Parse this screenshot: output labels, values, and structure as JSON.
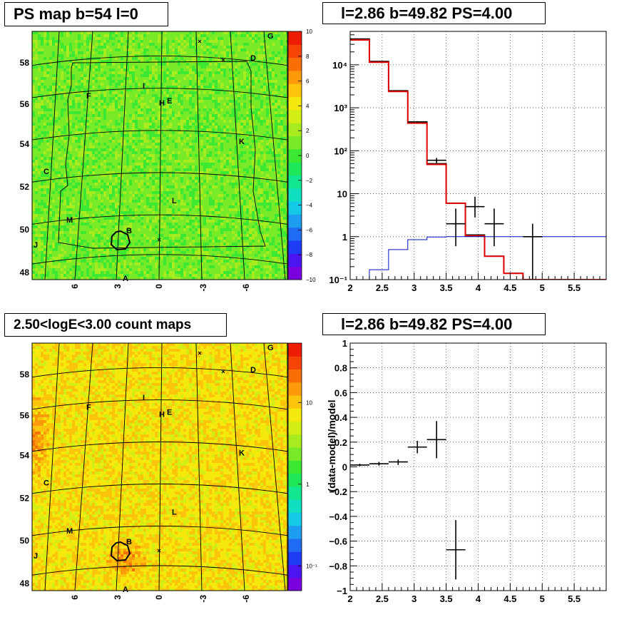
{
  "titles": {
    "ps_map": "PS map b=54 l=0",
    "count_maps": "2.50<logE<3.00 count maps",
    "spectrum": "l=2.86 b=49.82 PS=4.00",
    "residual": "l=2.86 b=49.82 PS=4.00"
  },
  "sky_maps": {
    "lat_labels": [
      "48",
      "50",
      "52",
      "54",
      "56",
      "58"
    ],
    "lon_labels": [
      "6",
      "3",
      "0",
      "-3",
      "-6"
    ],
    "source_labels": [
      "G",
      "D",
      "F",
      "I",
      "H",
      "E",
      "K",
      "C",
      "L",
      "M",
      "B",
      "J",
      "A"
    ]
  },
  "chart_data": [
    {
      "type": "heatmap",
      "id": "ps_map",
      "title": "PS map b=54 l=0",
      "colorbar": {
        "min": -10,
        "max": 10,
        "scale": "linear",
        "tick_labels": [
          "10",
          "8",
          "6",
          "4",
          "2",
          "0",
          "−2",
          "−4",
          "−6",
          "−8",
          "−10"
        ]
      },
      "xlabel": "",
      "ylabel": ""
    },
    {
      "type": "heatmap",
      "id": "count_maps",
      "title": "2.50<logE<3.00 count maps",
      "colorbar": {
        "scale": "log",
        "tick_labels": [
          "10",
          "1",
          "10⁻¹"
        ]
      },
      "xlabel": "",
      "ylabel": ""
    },
    {
      "type": "step",
      "id": "spectrum",
      "title": "l=2.86 b=49.82 PS=4.00",
      "xlim": [
        2,
        6
      ],
      "ylim": [
        0.1,
        60000
      ],
      "yscale": "log",
      "x_ticks": [
        "2",
        "2.5",
        "3",
        "3.5",
        "4",
        "4.5",
        "5",
        "5.5"
      ],
      "y_ticks": [
        "10⁻¹",
        "1",
        "10",
        "10²",
        "10³",
        "10⁴"
      ],
      "bin_edges": [
        2,
        2.3,
        2.6,
        2.9,
        3.2,
        3.5,
        3.8,
        4.1,
        4.4,
        4.7,
        5.0,
        6.0
      ],
      "series": [
        {
          "style": "black-hist",
          "values": [
            40000,
            12000,
            2500,
            470,
            50,
            6,
            1.1,
            0.35,
            0.14,
            0.1,
            0.1
          ]
        },
        {
          "style": "red-model",
          "values": [
            38000,
            11500,
            2400,
            440,
            48,
            6,
            1.05,
            0.35,
            0.14,
            0.1,
            0.1
          ]
        },
        {
          "style": "blue-ps",
          "values": [
            0.1,
            0.17,
            0.5,
            0.85,
            0.98,
            1.0,
            1.0,
            1.0,
            1.0,
            1.0,
            1.0
          ]
        }
      ],
      "data_points": [
        {
          "x": 3.05,
          "xerr": 0.15,
          "y": 470,
          "ylo": 450,
          "yhi": 490
        },
        {
          "x": 3.35,
          "xerr": 0.15,
          "y": 60,
          "ylo": 52,
          "yhi": 68
        },
        {
          "x": 3.65,
          "xerr": 0.15,
          "y": 2,
          "ylo": 0.6,
          "yhi": 4.5
        },
        {
          "x": 3.95,
          "xerr": 0.15,
          "y": 5,
          "ylo": 2.8,
          "yhi": 8.5
        },
        {
          "x": 4.25,
          "xerr": 0.15,
          "y": 2,
          "ylo": 0.6,
          "yhi": 4.5
        },
        {
          "x": 4.85,
          "xerr": 0.15,
          "y": 1,
          "ylo": 0.1,
          "yhi": 2
        }
      ]
    },
    {
      "type": "scatter",
      "id": "residual",
      "title": "l=2.86 b=49.82 PS=4.00",
      "ylabel": "(data-model)/model",
      "xlim": [
        2,
        6
      ],
      "ylim": [
        -1,
        1
      ],
      "x_ticks": [
        "2",
        "2.5",
        "3",
        "3.5",
        "4",
        "4.5",
        "5",
        "5.5"
      ],
      "y_ticks": [
        "1",
        "0.8",
        "0.6",
        "0.4",
        "0.2",
        "0",
        "−0.2",
        "−0.4",
        "−0.6",
        "−0.8",
        "−1"
      ],
      "points": [
        {
          "x": 2.15,
          "xerr": 0.15,
          "y": 0.015,
          "ylo": 0.005,
          "yhi": 0.025
        },
        {
          "x": 2.45,
          "xerr": 0.15,
          "y": 0.025,
          "ylo": 0.01,
          "yhi": 0.04
        },
        {
          "x": 2.75,
          "xerr": 0.15,
          "y": 0.04,
          "ylo": 0.015,
          "yhi": 0.06
        },
        {
          "x": 3.05,
          "xerr": 0.15,
          "y": 0.16,
          "ylo": 0.11,
          "yhi": 0.21
        },
        {
          "x": 3.35,
          "xerr": 0.15,
          "y": 0.22,
          "ylo": 0.07,
          "yhi": 0.37
        },
        {
          "x": 3.65,
          "xerr": 0.15,
          "y": -0.67,
          "ylo": -0.91,
          "yhi": -0.43
        }
      ]
    }
  ]
}
